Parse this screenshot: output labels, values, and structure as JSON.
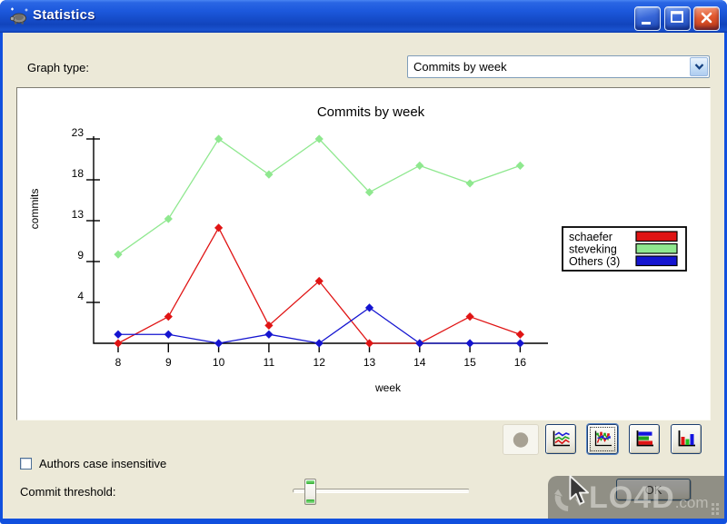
{
  "window": {
    "title": "Statistics"
  },
  "graph_type": {
    "label": "Graph type:",
    "value": "Commits by week"
  },
  "chart_data": {
    "type": "line",
    "title": "Commits by week",
    "xlabel": "week",
    "ylabel": "commits",
    "x": [
      8,
      9,
      10,
      11,
      12,
      13,
      14,
      15,
      16
    ],
    "ylim": [
      0,
      23
    ],
    "ytick_labels": [
      "4",
      "9",
      "13",
      "18",
      "23"
    ],
    "grid": false,
    "legend_position": "right",
    "series": [
      {
        "name": "schaefer",
        "color": "#e01414",
        "values": [
          0,
          3,
          13,
          2,
          7,
          0,
          0,
          3,
          1
        ]
      },
      {
        "name": "steveking",
        "color": "#8fe88f",
        "values": [
          10,
          14,
          23,
          19,
          23,
          17,
          20,
          18,
          20
        ]
      },
      {
        "name": "Others (3)",
        "color": "#1414d0",
        "values": [
          1,
          1,
          0,
          1,
          0,
          4,
          0,
          0,
          0
        ]
      }
    ]
  },
  "toolbar": {
    "buttons": [
      {
        "name": "pie-chart",
        "disabled": true,
        "selected": false
      },
      {
        "name": "line-chart",
        "disabled": false,
        "selected": false
      },
      {
        "name": "line-chart-points",
        "disabled": false,
        "selected": true
      },
      {
        "name": "stacked-bar-chart",
        "disabled": false,
        "selected": false
      },
      {
        "name": "bar-chart",
        "disabled": false,
        "selected": false
      }
    ]
  },
  "options": {
    "case_label": "Authors case insensitive",
    "case_checked": false,
    "threshold_label": "Commit threshold:",
    "slider_pct": 7
  },
  "ok": {
    "label": "OK"
  },
  "watermark": {
    "brand": "LO4D",
    "tld": ".com"
  },
  "colors": {
    "titlebar": "#1a55d8",
    "dialog_bg": "#ece9d8",
    "close_button": "#d6492a",
    "axis": "#000000"
  }
}
